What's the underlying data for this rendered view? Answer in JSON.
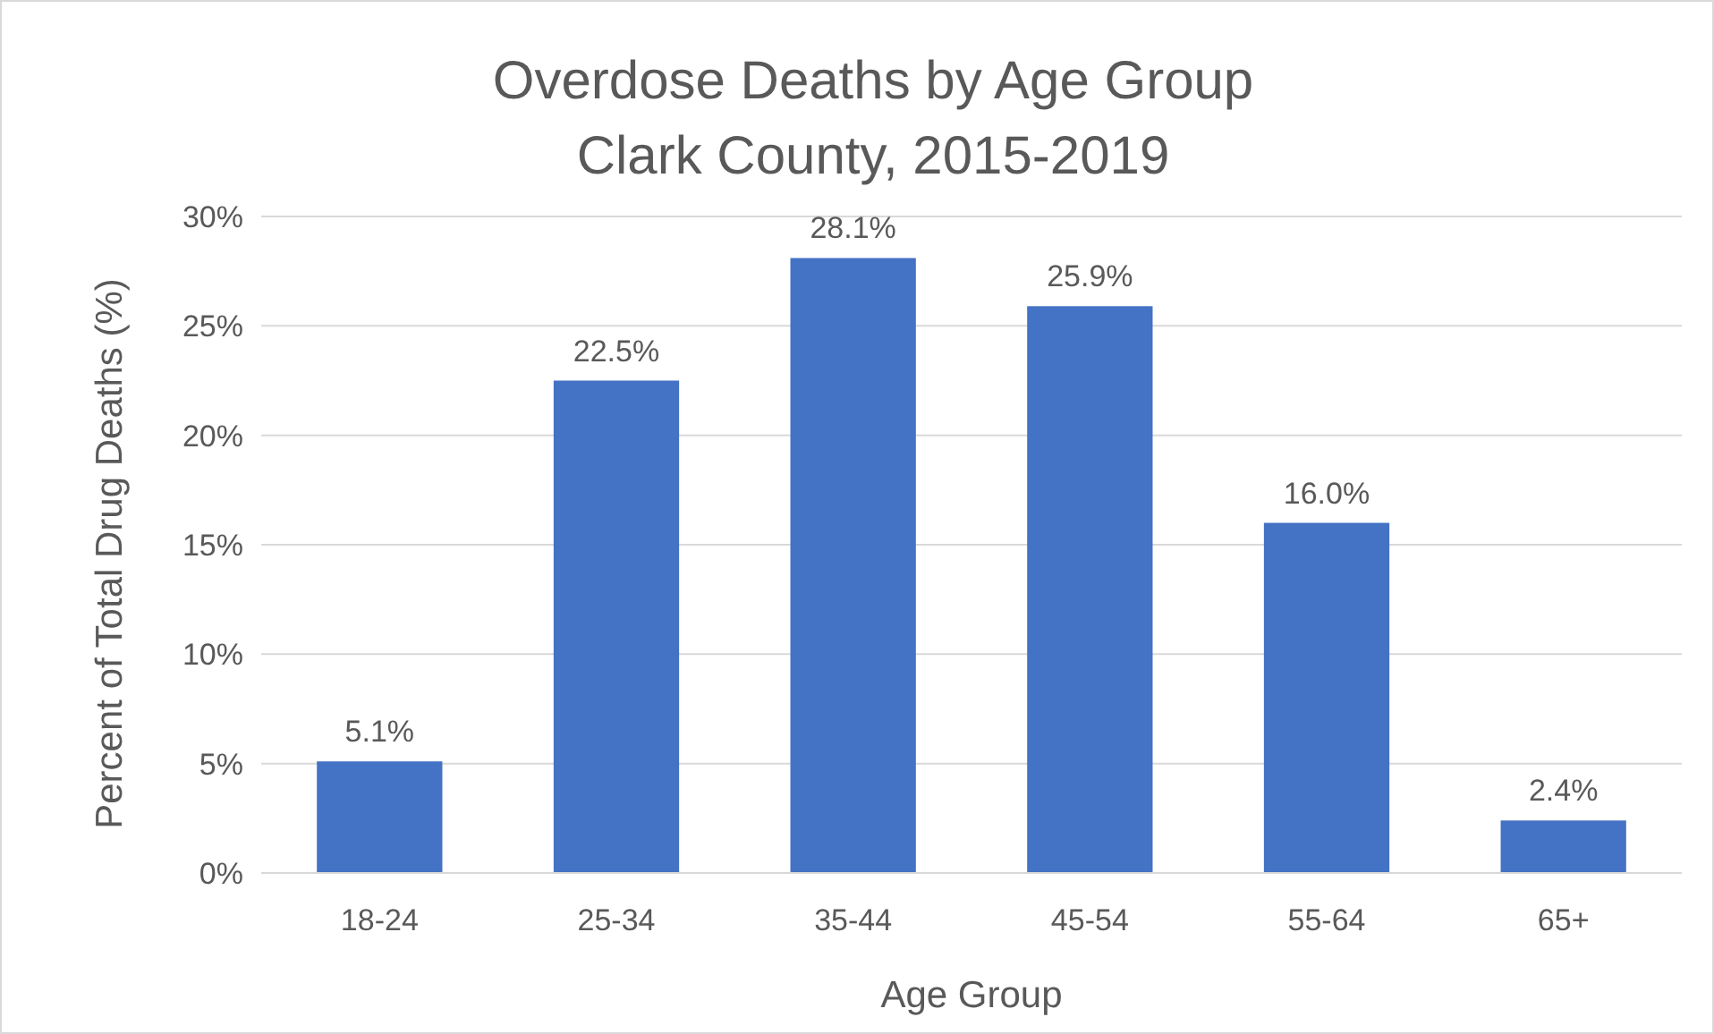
{
  "chart_data": {
    "type": "bar",
    "title": "Overdose Deaths by Age Group\nClark County, 2015-2019",
    "xlabel": "Age Group",
    "ylabel": "Percent of Total Drug Deaths (%)",
    "categories": [
      "18-24",
      "25-34",
      "35-44",
      "45-54",
      "55-64",
      "65+"
    ],
    "values": [
      5.1,
      22.5,
      28.1,
      25.9,
      16.0,
      2.4
    ],
    "value_labels": [
      "5.1%",
      "22.5%",
      "28.1%",
      "25.9%",
      "16.0%",
      "2.4%"
    ],
    "color": "#4472c4",
    "ylim": [
      0,
      30
    ],
    "yticks": [
      {
        "value": 0,
        "label": "0%"
      },
      {
        "value": 5,
        "label": "5%"
      },
      {
        "value": 10,
        "label": "10%"
      },
      {
        "value": 15,
        "label": "15%"
      },
      {
        "value": 20,
        "label": "20%"
      },
      {
        "value": 25,
        "label": "25%"
      },
      {
        "value": 30,
        "label": "30%"
      }
    ],
    "grid": "y"
  }
}
